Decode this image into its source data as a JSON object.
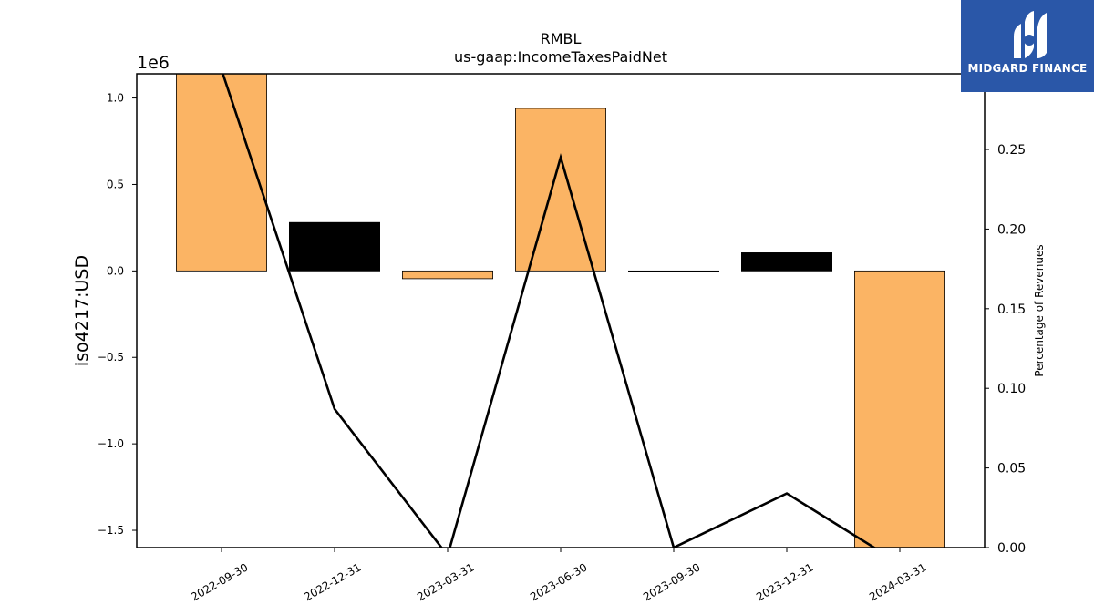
{
  "chart_data": {
    "type": "bar",
    "title": "RMBL",
    "subtitle": "us-gaap:IncomeTaxesPaidNet",
    "ylabel": "iso4217:USD",
    "y2label": "Percentage of Revenues",
    "y_offset_text": "1e6",
    "categories": [
      "2022-09-30",
      "2022-12-31",
      "2023-03-31",
      "2023-06-30",
      "2023-09-30",
      "2023-12-31",
      "2024-03-31"
    ],
    "values": [
      1140000,
      280000,
      -45000,
      940000,
      -3000,
      105000,
      -1620000
    ],
    "bar_colors": [
      "#fbb464",
      "#000000",
      "#fbb464",
      "#fbb464",
      "#000000",
      "#000000",
      "#fbb464"
    ],
    "ylim": [
      -1600000,
      1140000
    ],
    "yticks": [
      1000000,
      500000,
      0,
      -500000,
      -1000000,
      -1500000
    ],
    "ytick_labels": [
      "1.0",
      "0.5",
      "0.0",
      "−0.5",
      "−1.0",
      "−1.5"
    ],
    "line_series": {
      "values": [
        0.3,
        0.087,
        -0.005,
        0.245,
        0.0,
        0.034,
        -0.01
      ],
      "color": "#000000"
    },
    "y2lim": [
      0.0,
      0.2975
    ],
    "y2ticks": [
      0.0,
      0.05,
      0.1,
      0.15,
      0.2,
      0.25
    ],
    "y2tick_labels": [
      "0.00",
      "0.05",
      "0.10",
      "0.15",
      "0.20",
      "0.25"
    ],
    "grid": false
  },
  "logo": {
    "text": "MIDGARD FINANCE",
    "color": "#2a57a8"
  }
}
